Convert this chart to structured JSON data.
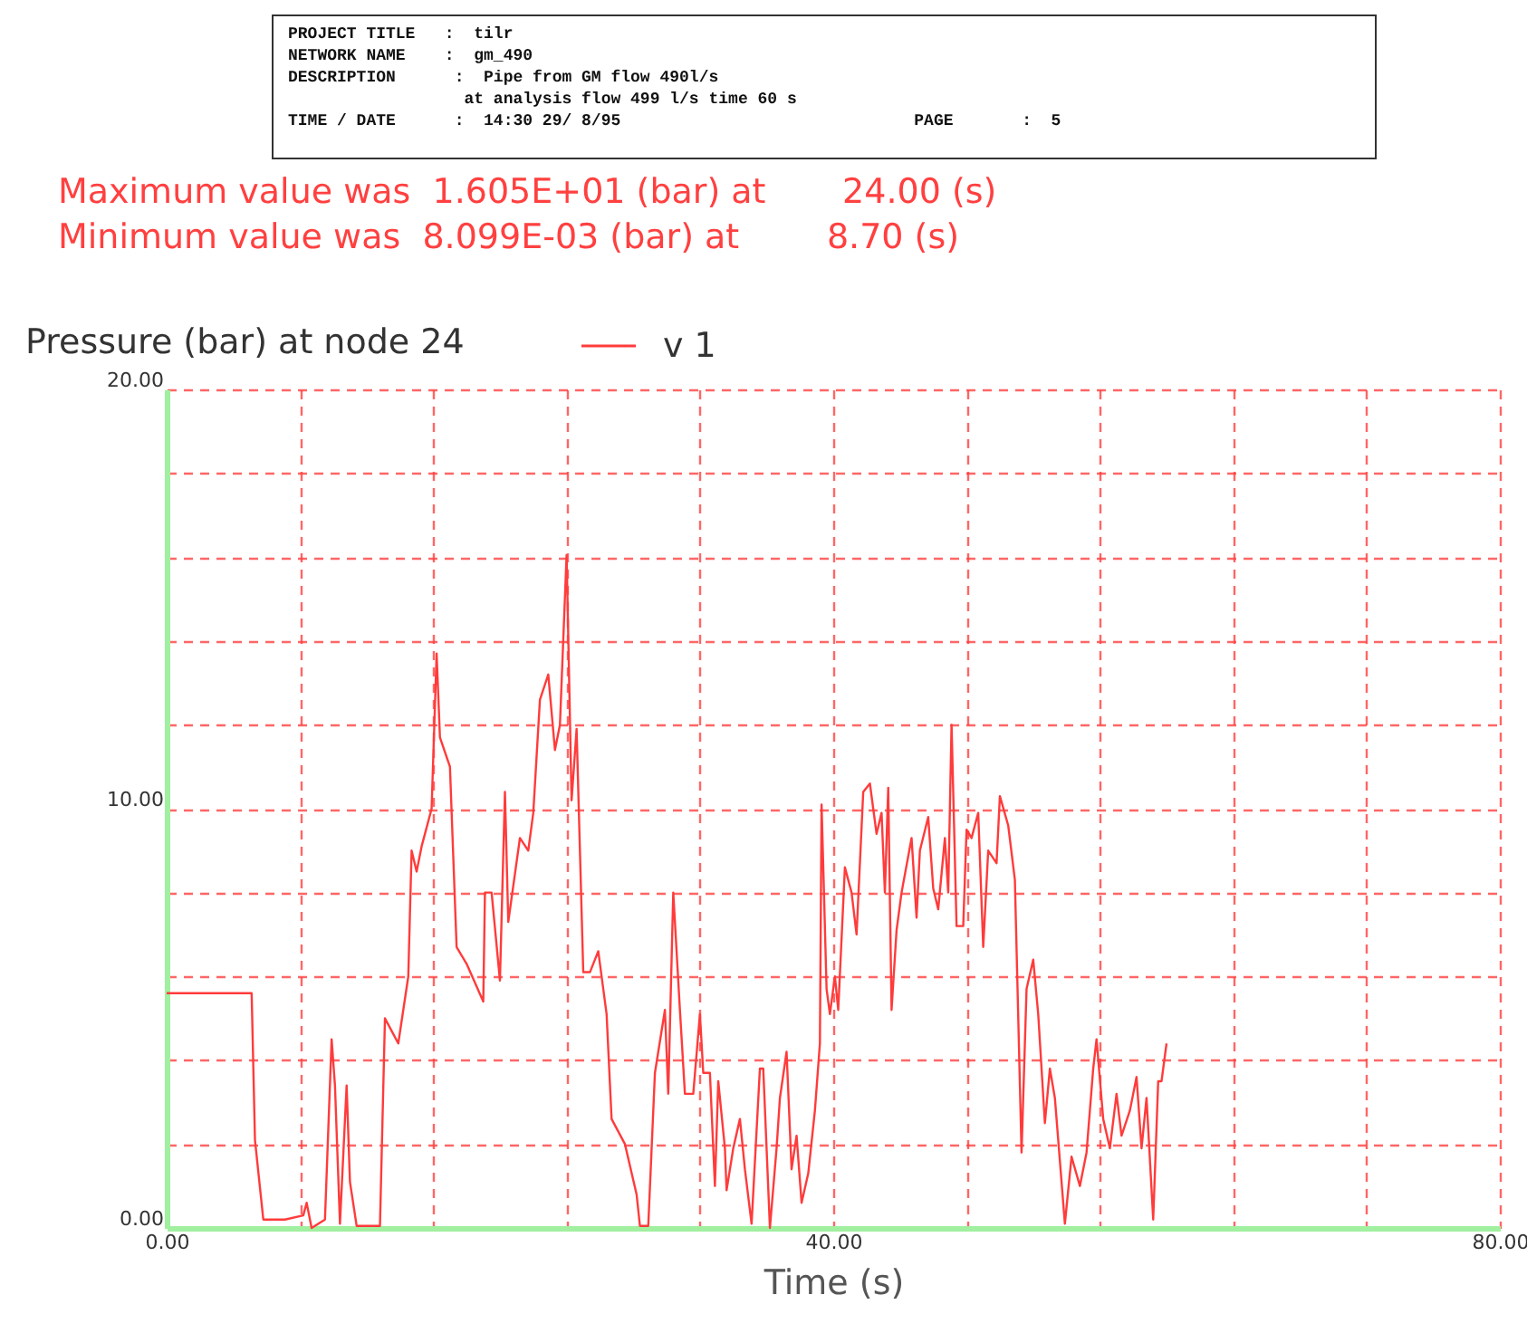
{
  "chart_data": {
    "type": "line",
    "title": "Pressure (bar) at node 24",
    "xlabel": "Time (s)",
    "annotations": [
      "PROJECT TITLE   :  tilr",
      "NETWORK NAME    :  gm_490",
      "DESCRIPTION      :  Pipe from GM flow 490l/s",
      "                  at analysis flow 499 l/s time 60 s",
      "TIME / DATE      :  14:30 29/ 8/95                              PAGE       :  5",
      "Maximum value was  1.605E+01 (bar) at       24.00 (s)",
      "Minimum value was  8.099E-03 (bar) at        8.70 (s)"
    ],
    "series": [
      {
        "name": "v 1",
        "color": "#ff3b3b",
        "x": [
          0,
          5.1,
          5.3,
          5.8,
          7.1,
          8.2,
          8.4,
          8.7,
          9.5,
          9.9,
          10.1,
          10.4,
          10.8,
          11.0,
          11.4,
          12.8,
          13.1,
          13.5,
          13.9,
          14.5,
          14.7,
          15.0,
          15.3,
          15.9,
          16.2,
          16.4,
          17.0,
          17.4,
          18.0,
          19.0,
          19.1,
          19.5,
          20.0,
          20.3,
          20.5,
          21.2,
          21.7,
          22.0,
          22.4,
          22.9,
          23.3,
          23.6,
          24.0,
          24.3,
          24.6,
          25.0,
          25.4,
          25.9,
          26.4,
          26.7,
          27.5,
          28.2,
          28.4,
          28.9,
          29.3,
          29.9,
          30.1,
          30.4,
          30.8,
          31.1,
          31.6,
          32.0,
          32.2,
          32.6,
          32.9,
          33.1,
          33.5,
          33.6,
          34.0,
          34.4,
          34.7,
          35.1,
          35.6,
          35.8,
          36.2,
          36.6,
          36.8,
          37.2,
          37.5,
          37.8,
          38.1,
          38.5,
          38.9,
          39.2,
          39.3,
          39.6,
          39.8,
          40.1,
          40.3,
          40.7,
          41.1,
          41.4,
          41.8,
          42.2,
          42.6,
          42.9,
          43.1,
          43.3,
          43.5,
          43.8,
          44.1,
          44.7,
          45.0,
          45.2,
          45.7,
          46.0,
          46.3,
          46.7,
          46.9,
          47.1,
          47.4,
          47.8,
          48.0,
          48.3,
          48.7,
          49.0,
          49.3,
          49.8,
          50.0,
          50.5,
          50.9,
          51.3,
          51.6,
          52.0,
          52.3,
          52.7,
          53.0,
          53.3,
          53.9,
          54.3,
          54.8,
          55.2,
          55.6,
          55.8,
          56.2,
          56.6,
          57.0,
          57.3,
          57.8,
          58.2,
          58.5,
          58.8,
          59.2,
          59.5,
          59.7,
          60.0
        ],
        "values": [
          5.6,
          5.6,
          2.1,
          0.2,
          0.2,
          0.3,
          0.6,
          0.0,
          0.2,
          4.5,
          3.4,
          0.1,
          3.4,
          1.1,
          0.05,
          0.05,
          5.0,
          4.7,
          4.4,
          6.0,
          9.0,
          8.5,
          9.1,
          10.0,
          13.7,
          11.7,
          11.0,
          6.7,
          6.3,
          5.4,
          8.0,
          8.0,
          5.9,
          10.4,
          7.3,
          9.3,
          9.0,
          9.9,
          12.6,
          13.2,
          11.4,
          12.0,
          16.05,
          10.2,
          11.9,
          6.1,
          6.1,
          6.6,
          5.1,
          2.6,
          2.0,
          0.8,
          0.05,
          0.05,
          3.7,
          5.2,
          3.2,
          8.0,
          5.2,
          3.2,
          3.2,
          5.1,
          3.7,
          3.7,
          1.0,
          3.5,
          1.9,
          0.9,
          1.9,
          2.6,
          1.4,
          0.1,
          3.8,
          3.8,
          0.0,
          1.9,
          3.1,
          4.2,
          1.4,
          2.2,
          0.6,
          1.3,
          2.8,
          4.4,
          10.1,
          5.7,
          5.1,
          6.0,
          5.2,
          8.6,
          8.0,
          7.0,
          10.4,
          10.6,
          9.4,
          9.9,
          8.0,
          10.5,
          5.2,
          7.1,
          8.0,
          9.3,
          7.4,
          9.0,
          9.8,
          8.1,
          7.6,
          9.3,
          8.0,
          12.0,
          7.2,
          7.2,
          9.5,
          9.3,
          9.9,
          6.7,
          9.0,
          8.7,
          10.3,
          9.6,
          8.3,
          1.8,
          5.7,
          6.4,
          5.1,
          2.5,
          3.8,
          3.1,
          0.1,
          1.7,
          1.0,
          1.8,
          3.8,
          4.5,
          2.6,
          1.9,
          3.2,
          2.2,
          2.8,
          3.6,
          1.9,
          3.1,
          0.2,
          3.5,
          3.5,
          4.4
        ]
      }
    ],
    "xlim": [
      0,
      80
    ],
    "ylim": [
      0,
      20
    ],
    "xticks": [
      {
        "value": 0,
        "label": "0.00"
      },
      {
        "value": 8,
        "label": null
      },
      {
        "value": 16,
        "label": null
      },
      {
        "value": 24,
        "label": null
      },
      {
        "value": 32,
        "label": null
      },
      {
        "value": 40,
        "label": "40.00"
      },
      {
        "value": 48,
        "label": null
      },
      {
        "value": 56,
        "label": null
      },
      {
        "value": 64,
        "label": null
      },
      {
        "value": 72,
        "label": null
      },
      {
        "value": 80,
        "label": "80.00"
      }
    ],
    "yticks": [
      {
        "value": 0,
        "label": "0.00"
      },
      {
        "value": 2,
        "label": null
      },
      {
        "value": 4,
        "label": null
      },
      {
        "value": 6,
        "label": null
      },
      {
        "value": 8,
        "label": null
      },
      {
        "value": 10,
        "label": "10.00"
      },
      {
        "value": 12,
        "label": null
      },
      {
        "value": 14,
        "label": null
      },
      {
        "value": 16,
        "label": null
      },
      {
        "value": 18,
        "label": null
      },
      {
        "value": 20,
        "label": "20.00"
      }
    ],
    "grid": true,
    "legend": "top",
    "marker": "none",
    "line_style": "solid"
  }
}
